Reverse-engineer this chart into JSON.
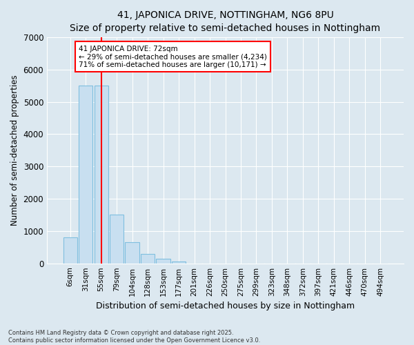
{
  "title": "41, JAPONICA DRIVE, NOTTINGHAM, NG6 8PU",
  "subtitle": "Size of property relative to semi-detached houses in Nottingham",
  "xlabel": "Distribution of semi-detached houses by size in Nottingham",
  "ylabel": "Number of semi-detached properties",
  "categories": [
    "6sqm",
    "31sqm",
    "55sqm",
    "79sqm",
    "104sqm",
    "128sqm",
    "153sqm",
    "177sqm",
    "201sqm",
    "226sqm",
    "250sqm",
    "275sqm",
    "299sqm",
    "323sqm",
    "348sqm",
    "372sqm",
    "397sqm",
    "421sqm",
    "446sqm",
    "470sqm",
    "494sqm"
  ],
  "values": [
    800,
    5500,
    5500,
    1500,
    650,
    300,
    150,
    50,
    0,
    0,
    0,
    0,
    0,
    0,
    0,
    0,
    0,
    0,
    0,
    0,
    0
  ],
  "bar_color": "#c8dff0",
  "bar_edge_color": "#7fbfdf",
  "red_line_x": 2.0,
  "annotation_text": "41 JAPONICA DRIVE: 72sqm\n← 29% of semi-detached houses are smaller (4,234)\n71% of semi-detached houses are larger (10,171) →",
  "ylim": [
    0,
    7000
  ],
  "yticks": [
    0,
    1000,
    2000,
    3000,
    4000,
    5000,
    6000,
    7000
  ],
  "footer_line1": "Contains HM Land Registry data © Crown copyright and database right 2025.",
  "footer_line2": "Contains public sector information licensed under the Open Government Licence v3.0.",
  "background_color": "#dce8f0",
  "plot_background": "#dce8f0"
}
